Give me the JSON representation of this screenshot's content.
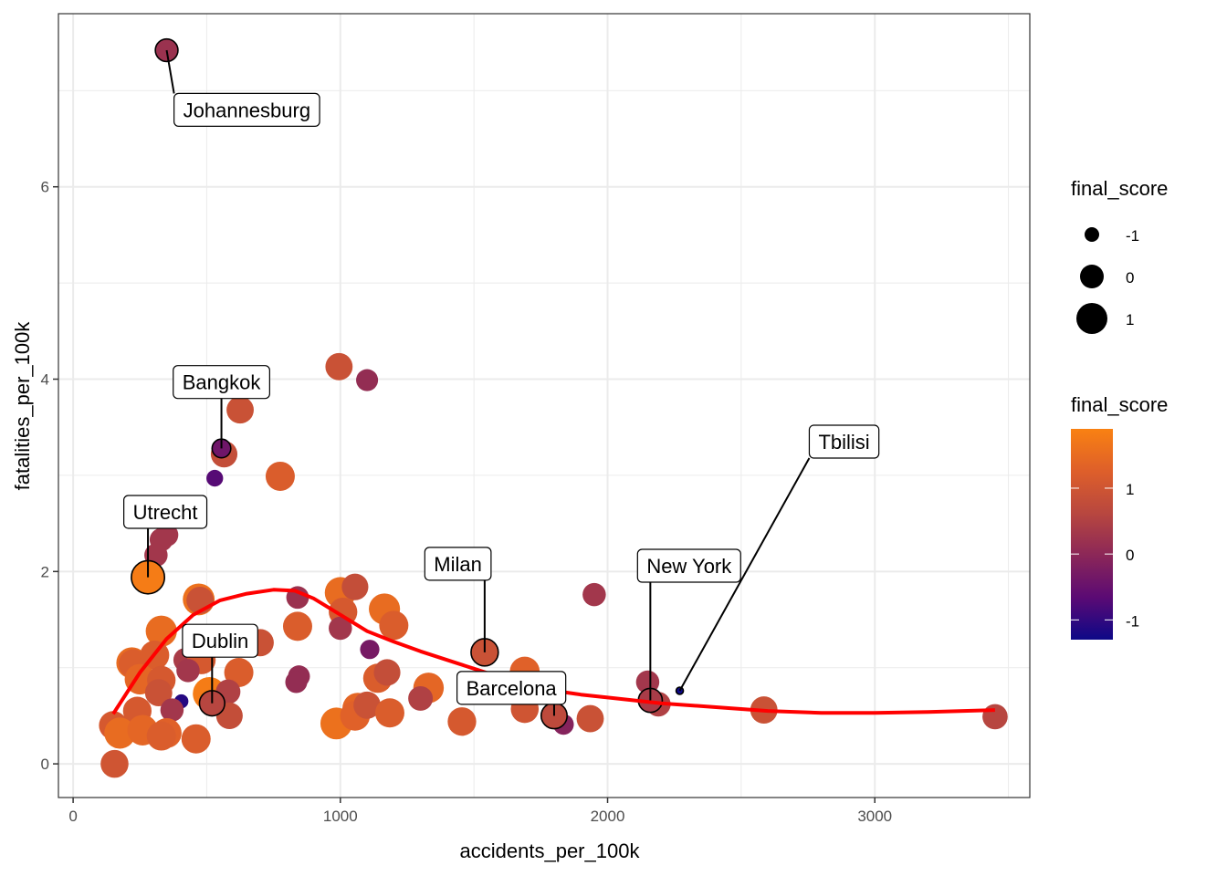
{
  "chart_data": {
    "type": "scatter",
    "title": "",
    "xlabel": "accidents_per_100k",
    "ylabel": "fatalities_per_100k",
    "xlim": [
      -55,
      3580
    ],
    "ylim": [
      -0.35,
      7.8
    ],
    "x_ticks": [
      0,
      1000,
      2000,
      3000
    ],
    "x_tick_labels": [
      "0",
      "1000",
      "2000",
      "3000"
    ],
    "y_ticks": [
      0,
      2,
      4,
      6
    ],
    "y_tick_labels": [
      "0",
      "2",
      "4",
      "6"
    ],
    "x_minor": [
      500,
      1500,
      2500,
      3500
    ],
    "y_minor": [
      1,
      3,
      5,
      7
    ],
    "grid": true,
    "size_legend": {
      "title": "final_score",
      "entries": [
        {
          "label": "-1",
          "value": -1
        },
        {
          "label": "0",
          "value": 0
        },
        {
          "label": "1",
          "value": 1
        }
      ]
    },
    "color_legend": {
      "title": "final_score",
      "tick_labels": [
        "1",
        "0",
        "-1"
      ],
      "ticks": [
        1,
        0,
        -1
      ],
      "range": [
        -1.3,
        1.9
      ],
      "colors": [
        "#0D0887",
        "#5B0A74",
        "#8B2758",
        "#B8473F",
        "#DE5F2A",
        "#F98112"
      ]
    },
    "smooth_line_color": "#FF0000",
    "smooth_line": [
      [
        150,
        0.52
      ],
      [
        250,
        0.95
      ],
      [
        350,
        1.3
      ],
      [
        450,
        1.55
      ],
      [
        550,
        1.7
      ],
      [
        650,
        1.77
      ],
      [
        750,
        1.81
      ],
      [
        830,
        1.8
      ],
      [
        900,
        1.72
      ],
      [
        1000,
        1.55
      ],
      [
        1100,
        1.38
      ],
      [
        1200,
        1.27
      ],
      [
        1300,
        1.17
      ],
      [
        1400,
        1.08
      ],
      [
        1500,
        0.99
      ],
      [
        1600,
        0.9
      ],
      [
        1700,
        0.82
      ],
      [
        1800,
        0.76
      ],
      [
        1900,
        0.72
      ],
      [
        2000,
        0.69
      ],
      [
        2200,
        0.63
      ],
      [
        2400,
        0.59
      ],
      [
        2600,
        0.55
      ],
      [
        2800,
        0.53
      ],
      [
        3000,
        0.53
      ],
      [
        3200,
        0.54
      ],
      [
        3450,
        0.56
      ]
    ],
    "points": [
      {
        "x": 350,
        "y": 7.42,
        "score": 0.2,
        "name": "Johannesburg"
      },
      {
        "x": 555,
        "y": 3.28,
        "score": -0.4,
        "name": "Bangkok"
      },
      {
        "x": 280,
        "y": 1.94,
        "score": 1.8,
        "name": "Utrecht"
      },
      {
        "x": 520,
        "y": 0.63,
        "score": 0.6,
        "name": "Dublin"
      },
      {
        "x": 1540,
        "y": 1.16,
        "score": 0.9,
        "name": "Milan"
      },
      {
        "x": 1800,
        "y": 0.5,
        "score": 0.7,
        "name": "Barcelona"
      },
      {
        "x": 2160,
        "y": 0.66,
        "score": 0.4,
        "name": "New York"
      },
      {
        "x": 2270,
        "y": 0.76,
        "score": -1.3,
        "name": "Tbilisi"
      },
      {
        "x": 995,
        "y": 4.13,
        "score": 0.9
      },
      {
        "x": 1100,
        "y": 3.99,
        "score": 0.1
      },
      {
        "x": 625,
        "y": 3.68,
        "score": 0.9
      },
      {
        "x": 565,
        "y": 3.22,
        "score": 0.8
      },
      {
        "x": 530,
        "y": 2.97,
        "score": -0.7
      },
      {
        "x": 775,
        "y": 2.99,
        "score": 1.2
      },
      {
        "x": 350,
        "y": 2.38,
        "score": 0.3
      },
      {
        "x": 330,
        "y": 2.33,
        "score": 0.3
      },
      {
        "x": 310,
        "y": 2.17,
        "score": 0.3
      },
      {
        "x": 470,
        "y": 1.71,
        "score": 1.6
      },
      {
        "x": 475,
        "y": 1.7,
        "score": 0.9
      },
      {
        "x": 840,
        "y": 1.73,
        "score": 0.2
      },
      {
        "x": 1000,
        "y": 1.78,
        "score": 1.5
      },
      {
        "x": 1055,
        "y": 1.84,
        "score": 0.8
      },
      {
        "x": 1010,
        "y": 1.58,
        "score": 1.1
      },
      {
        "x": 1165,
        "y": 1.61,
        "score": 1.5
      },
      {
        "x": 1200,
        "y": 1.44,
        "score": 1.2
      },
      {
        "x": 840,
        "y": 1.43,
        "score": 1.2
      },
      {
        "x": 1000,
        "y": 1.41,
        "score": 0.3
      },
      {
        "x": 1110,
        "y": 1.19,
        "score": -0.3
      },
      {
        "x": 330,
        "y": 1.38,
        "score": 1.5
      },
      {
        "x": 220,
        "y": 1.05,
        "score": 1.5
      },
      {
        "x": 225,
        "y": 1.04,
        "score": 1.2
      },
      {
        "x": 305,
        "y": 1.13,
        "score": 1.2
      },
      {
        "x": 420,
        "y": 1.08,
        "score": 0.4
      },
      {
        "x": 480,
        "y": 1.08,
        "score": 1.1
      },
      {
        "x": 700,
        "y": 1.26,
        "score": 0.9
      },
      {
        "x": 620,
        "y": 0.95,
        "score": 1.2
      },
      {
        "x": 430,
        "y": 0.97,
        "score": 0.3
      },
      {
        "x": 250,
        "y": 0.88,
        "score": 1.4
      },
      {
        "x": 330,
        "y": 0.87,
        "score": 1.1
      },
      {
        "x": 320,
        "y": 0.74,
        "score": 0.9
      },
      {
        "x": 405,
        "y": 0.65,
        "score": -1.1
      },
      {
        "x": 370,
        "y": 0.56,
        "score": 0.3
      },
      {
        "x": 510,
        "y": 0.73,
        "score": 1.8
      },
      {
        "x": 580,
        "y": 0.75,
        "score": 0.5
      },
      {
        "x": 585,
        "y": 0.5,
        "score": 0.8
      },
      {
        "x": 240,
        "y": 0.55,
        "score": 1.1
      },
      {
        "x": 150,
        "y": 0.4,
        "score": 1.1
      },
      {
        "x": 175,
        "y": 0.32,
        "score": 1.5
      },
      {
        "x": 260,
        "y": 0.35,
        "score": 1.4
      },
      {
        "x": 350,
        "y": 0.32,
        "score": 1.3
      },
      {
        "x": 330,
        "y": 0.29,
        "score": 1.2
      },
      {
        "x": 460,
        "y": 0.26,
        "score": 1.2
      },
      {
        "x": 155,
        "y": 0.0,
        "score": 1.0
      },
      {
        "x": 845,
        "y": 0.91,
        "score": 0.1
      },
      {
        "x": 835,
        "y": 0.85,
        "score": 0.1
      },
      {
        "x": 985,
        "y": 0.42,
        "score": 1.6
      },
      {
        "x": 1065,
        "y": 0.58,
        "score": 1.4
      },
      {
        "x": 1055,
        "y": 0.5,
        "score": 1.3
      },
      {
        "x": 1100,
        "y": 0.61,
        "score": 0.9
      },
      {
        "x": 1185,
        "y": 0.53,
        "score": 1.2
      },
      {
        "x": 1140,
        "y": 0.89,
        "score": 1.2
      },
      {
        "x": 1175,
        "y": 0.95,
        "score": 0.8
      },
      {
        "x": 1330,
        "y": 0.79,
        "score": 1.4
      },
      {
        "x": 1300,
        "y": 0.68,
        "score": 0.5
      },
      {
        "x": 1455,
        "y": 0.44,
        "score": 1.1
      },
      {
        "x": 1690,
        "y": 0.96,
        "score": 1.3
      },
      {
        "x": 1690,
        "y": 0.57,
        "score": 1.0
      },
      {
        "x": 1835,
        "y": 0.41,
        "score": -0.1
      },
      {
        "x": 1935,
        "y": 0.47,
        "score": 0.9
      },
      {
        "x": 1950,
        "y": 1.76,
        "score": 0.3
      },
      {
        "x": 2150,
        "y": 0.85,
        "score": 0.3
      },
      {
        "x": 2190,
        "y": 0.62,
        "score": 0.5
      },
      {
        "x": 2585,
        "y": 0.56,
        "score": 0.9
      },
      {
        "x": 3450,
        "y": 0.49,
        "score": 0.6
      }
    ],
    "labels": [
      {
        "text": "Johannesburg",
        "point": 0,
        "lx": 650,
        "ly": 6.8
      },
      {
        "text": "Bangkok",
        "point": 1,
        "lx": 555,
        "ly": 3.97
      },
      {
        "text": "Utrecht",
        "point": 2,
        "lx": 345,
        "ly": 2.62
      },
      {
        "text": "Dublin",
        "point": 3,
        "lx": 550,
        "ly": 1.28
      },
      {
        "text": "Milan",
        "point": 4,
        "lx": 1440,
        "ly": 2.08
      },
      {
        "text": "Barcelona",
        "point": 5,
        "lx": 1640,
        "ly": 0.79
      },
      {
        "text": "New York",
        "point": 6,
        "lx": 2305,
        "ly": 2.06
      },
      {
        "text": "Tbilisi",
        "point": 7,
        "lx": 2885,
        "ly": 3.35
      }
    ]
  }
}
